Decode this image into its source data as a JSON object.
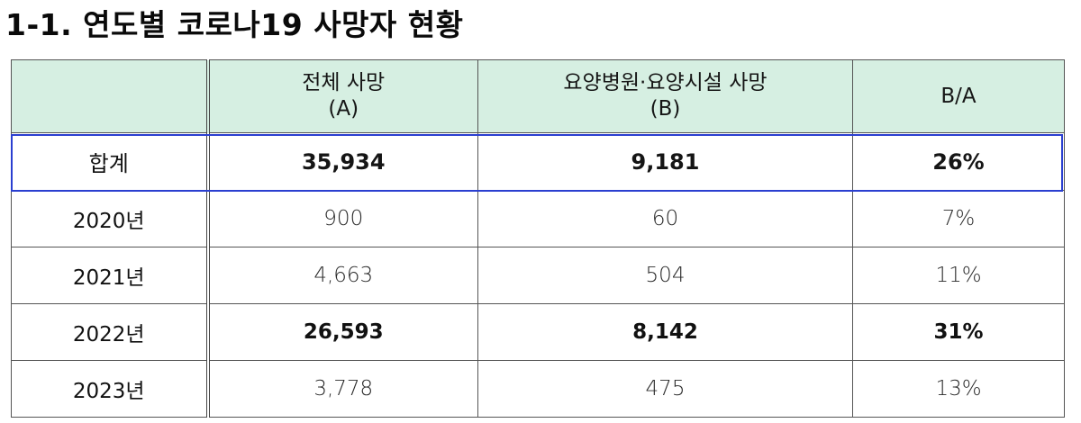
{
  "title": "1-1. 연도별 코로나19 사망자 현황",
  "table": {
    "headers": [
      {
        "line1": "",
        "line2": ""
      },
      {
        "line1": "전체 사망",
        "line2": "(A)"
      },
      {
        "line1": "요양병원·요양시설 사망",
        "line2": "(B)"
      },
      {
        "line1": "B/A",
        "line2": ""
      }
    ],
    "total": {
      "label": "합계",
      "total_deaths": "35,934",
      "care_deaths": "9,181",
      "ratio": "26%"
    },
    "rows": [
      {
        "label": "2020년",
        "total_deaths": "900",
        "care_deaths": "60",
        "ratio": "7%",
        "emphasis": false
      },
      {
        "label": "2021년",
        "total_deaths": "4,663",
        "care_deaths": "504",
        "ratio": "11%",
        "emphasis": false
      },
      {
        "label": "2022년",
        "total_deaths": "26,593",
        "care_deaths": "8,142",
        "ratio": "31%",
        "emphasis": true
      },
      {
        "label": "2023년",
        "total_deaths": "3,778",
        "care_deaths": "475",
        "ratio": "13%",
        "emphasis": false
      }
    ]
  },
  "colors": {
    "header_bg": "#d6efe2",
    "highlight_border": "#2a3fd0",
    "grid_line": "#555555"
  }
}
